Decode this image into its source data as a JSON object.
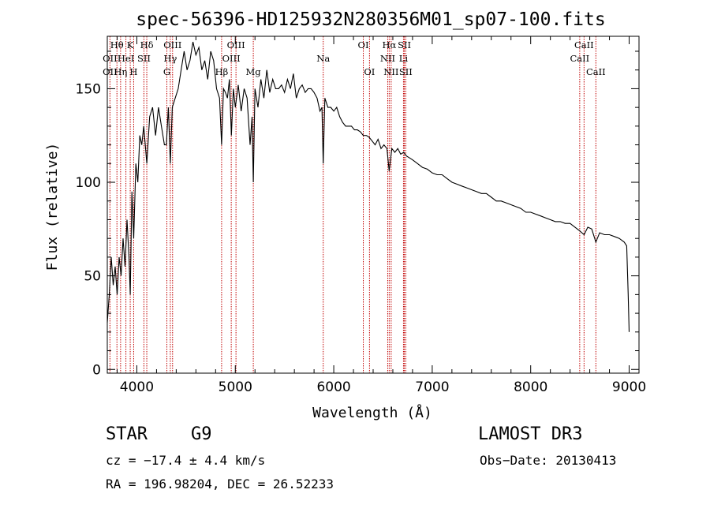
{
  "chart_data": {
    "type": "line",
    "title": "spec-56396-HD125932N280356M01_sp07-100.fits",
    "xlabel": "Wavelength (Å)",
    "ylabel": "Flux (relative)",
    "xlim": [
      3700,
      9100
    ],
    "ylim": [
      -2,
      178
    ],
    "xticks": [
      4000,
      5000,
      6000,
      7000,
      8000,
      9000
    ],
    "yticks": [
      0,
      50,
      100,
      150
    ],
    "series": [
      {
        "name": "flux",
        "x": [
          3700,
          3720,
          3740,
          3760,
          3780,
          3800,
          3820,
          3840,
          3860,
          3880,
          3900,
          3920,
          3933,
          3950,
          3968,
          3990,
          4010,
          4030,
          4050,
          4070,
          4101,
          4130,
          4160,
          4190,
          4220,
          4250,
          4280,
          4300,
          4320,
          4340,
          4360,
          4390,
          4420,
          4450,
          4480,
          4510,
          4540,
          4570,
          4600,
          4630,
          4660,
          4690,
          4720,
          4750,
          4780,
          4810,
          4840,
          4861,
          4880,
          4900,
          4920,
          4940,
          4960,
          4980,
          5000,
          5030,
          5060,
          5090,
          5120,
          5150,
          5170,
          5183,
          5200,
          5230,
          5260,
          5290,
          5320,
          5350,
          5380,
          5410,
          5440,
          5470,
          5500,
          5530,
          5560,
          5590,
          5620,
          5650,
          5680,
          5710,
          5740,
          5770,
          5800,
          5830,
          5860,
          5880,
          5893,
          5910,
          5940,
          5970,
          6000,
          6030,
          6060,
          6090,
          6120,
          6150,
          6180,
          6210,
          6240,
          6270,
          6300,
          6330,
          6360,
          6390,
          6420,
          6450,
          6480,
          6510,
          6540,
          6563,
          6590,
          6620,
          6650,
          6680,
          6710,
          6740,
          6770,
          6800,
          6850,
          6900,
          6950,
          7000,
          7050,
          7100,
          7150,
          7200,
          7250,
          7300,
          7350,
          7400,
          7450,
          7500,
          7550,
          7600,
          7650,
          7700,
          7750,
          7800,
          7850,
          7900,
          7950,
          8000,
          8050,
          8100,
          8150,
          8200,
          8250,
          8300,
          8350,
          8400,
          8450,
          8498,
          8542,
          8580,
          8620,
          8662,
          8700,
          8750,
          8800,
          8850,
          8900,
          8950,
          8975,
          8990,
          9000
        ],
        "values": [
          25,
          40,
          60,
          45,
          55,
          40,
          60,
          50,
          70,
          55,
          80,
          60,
          40,
          95,
          70,
          110,
          100,
          125,
          120,
          130,
          110,
          135,
          140,
          125,
          140,
          130,
          120,
          120,
          140,
          110,
          140,
          145,
          150,
          160,
          170,
          160,
          165,
          175,
          168,
          172,
          160,
          165,
          155,
          170,
          165,
          150,
          145,
          120,
          150,
          148,
          145,
          155,
          125,
          150,
          140,
          152,
          138,
          150,
          145,
          120,
          135,
          100,
          150,
          140,
          155,
          145,
          160,
          148,
          155,
          150,
          150,
          152,
          148,
          155,
          150,
          158,
          145,
          150,
          152,
          148,
          150,
          150,
          148,
          145,
          138,
          140,
          110,
          145,
          140,
          140,
          138,
          140,
          135,
          132,
          130,
          130,
          130,
          128,
          128,
          127,
          125,
          125,
          124,
          122,
          120,
          123,
          118,
          120,
          118,
          106,
          118,
          116,
          118,
          115,
          116,
          114,
          113,
          112,
          110,
          108,
          107,
          105,
          104,
          104,
          102,
          100,
          99,
          98,
          97,
          96,
          95,
          94,
          94,
          92,
          90,
          90,
          89,
          88,
          87,
          86,
          84,
          84,
          83,
          82,
          81,
          80,
          79,
          79,
          78,
          78,
          76,
          74,
          72,
          76,
          75,
          68,
          73,
          72,
          72,
          71,
          70,
          68,
          66,
          40,
          20
        ]
      }
    ],
    "lines": [
      {
        "name": "Hθ",
        "wl": 3798,
        "row": 0
      },
      {
        "name": "K",
        "wl": 3933,
        "row": 0
      },
      {
        "name": "Hδ",
        "wl": 4101,
        "row": 0
      },
      {
        "name": "OIII",
        "wl": 4363,
        "row": 0
      },
      {
        "name": "OIII",
        "wl": 5007,
        "row": 0
      },
      {
        "name": "OI",
        "wl": 6300,
        "row": 0
      },
      {
        "name": "Hα",
        "wl": 6563,
        "row": 0
      },
      {
        "name": "SII",
        "wl": 6717,
        "row": 0
      },
      {
        "name": "CaII",
        "wl": 8542,
        "row": 0
      },
      {
        "name": "OII",
        "wl": 3727,
        "row": 1
      },
      {
        "name": "HeI",
        "wl": 3889,
        "row": 1
      },
      {
        "name": "SII",
        "wl": 4072,
        "row": 1
      },
      {
        "name": "Hγ",
        "wl": 4340,
        "row": 1
      },
      {
        "name": "OIII",
        "wl": 4959,
        "row": 1
      },
      {
        "name": "Na",
        "wl": 5893,
        "row": 1
      },
      {
        "name": "NII",
        "wl": 6548,
        "row": 1
      },
      {
        "name": "Li",
        "wl": 6708,
        "row": 1
      },
      {
        "name": "CaII",
        "wl": 8498,
        "row": 1
      },
      {
        "name": "OII",
        "wl": 3727,
        "row": 2
      },
      {
        "name": "Hη",
        "wl": 3835,
        "row": 2
      },
      {
        "name": "H",
        "wl": 3968,
        "row": 2
      },
      {
        "name": "G",
        "wl": 4305,
        "row": 2
      },
      {
        "name": "Hβ",
        "wl": 4861,
        "row": 2
      },
      {
        "name": "Mg",
        "wl": 5183,
        "row": 2
      },
      {
        "name": "OI",
        "wl": 6363,
        "row": 2
      },
      {
        "name": "NII",
        "wl": 6583,
        "row": 2
      },
      {
        "name": "SII",
        "wl": 6731,
        "row": 2
      },
      {
        "name": "CaII",
        "wl": 8662,
        "row": 2
      }
    ],
    "colors": {
      "line_marker": "#c00000",
      "spectrum": "#000000"
    }
  },
  "info": {
    "object_class": "STAR",
    "subclass": "G9",
    "survey": "LAMOST DR3",
    "redshift": "cz = −17.4 ± 4.4 km/s",
    "obs_date": "Obs−Date: 20130413",
    "coords": "RA = 196.98204, DEC =  26.52233"
  }
}
